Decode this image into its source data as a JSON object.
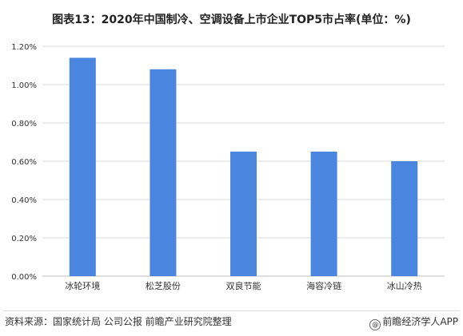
{
  "title": "图表13：2020年中国制冷、空调设备上市企业TOP5市占率(单位：%)",
  "footer": {
    "source": "资料来源：国家统计局 公司公报 前瞻产业研究院整理",
    "credit": "前瞻经济学人APP",
    "credit_icon": "at-sign-icon"
  },
  "colors": {
    "bar": "#4a86e0",
    "grid": "#d9d9d9",
    "axis": "#bfbfbf"
  },
  "chart_data": {
    "type": "bar",
    "categories": [
      "冰轮环境",
      "松芝股份",
      "双良节能",
      "海容冷链",
      "冰山冷热"
    ],
    "values": [
      1.14,
      1.08,
      0.65,
      0.65,
      0.6
    ],
    "title": "图表13：2020年中国制冷、空调设备上市企业TOP5市占率(单位：%)",
    "xlabel": "",
    "ylabel": "",
    "ylim": [
      0,
      1.2
    ],
    "yticks": [
      "0.00%",
      "0.20%",
      "0.40%",
      "0.60%",
      "0.80%",
      "1.00%",
      "1.20%"
    ],
    "grid": true,
    "legend": "none"
  }
}
